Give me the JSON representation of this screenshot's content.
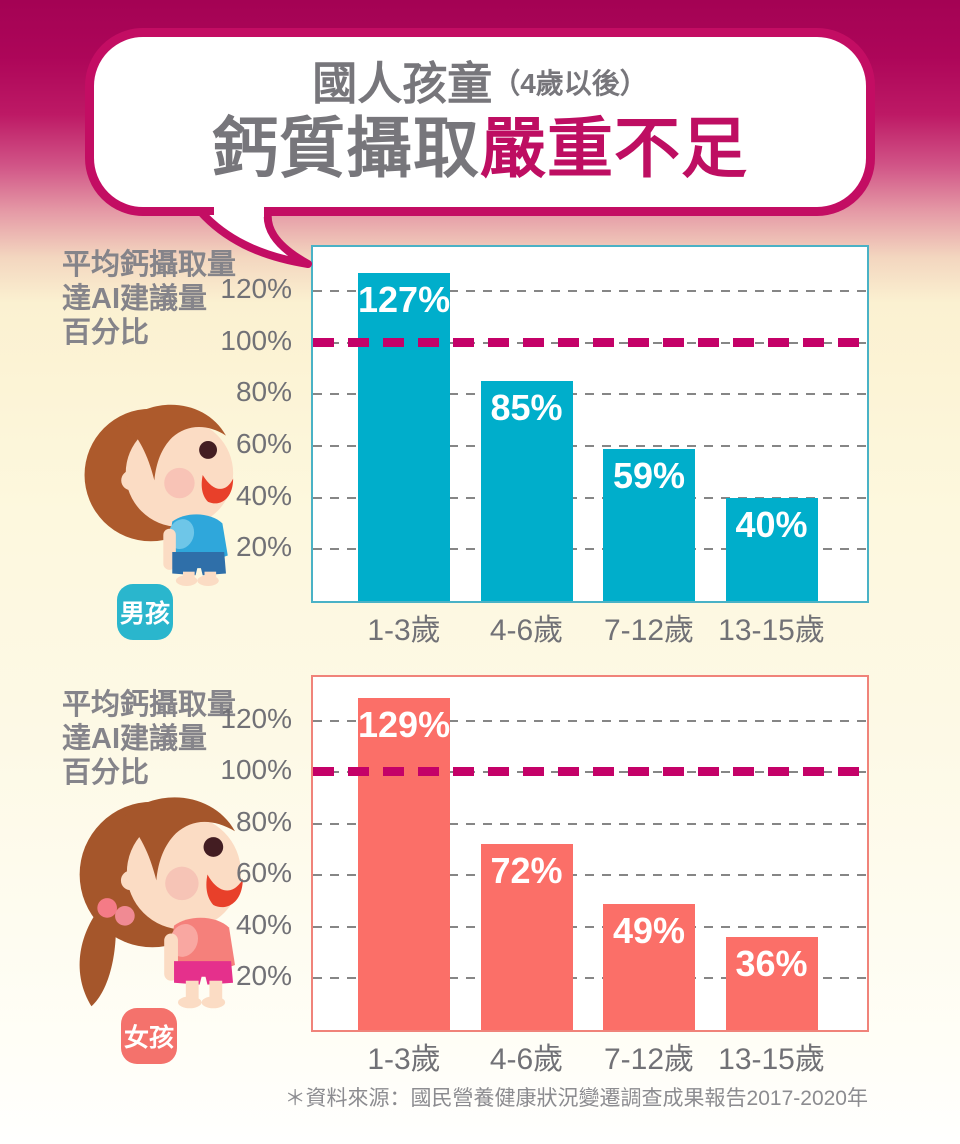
{
  "header": {
    "title_prefix": "國人孩童",
    "title_paren": "（4歲以後）",
    "title_main_gray": "鈣質攝取",
    "title_main_accent": "嚴重不足"
  },
  "colors": {
    "title_accent": "#be0e62",
    "bubble_border": "#c30d63",
    "reference_line": "#c40168",
    "grid_gray": "#868686",
    "text_gray": "#77767b",
    "boys_bar": "#00aecb",
    "boys_border": "#4ab2c6",
    "boys_badge": "#2ab6cd",
    "girls_bar": "#fb6f68",
    "girls_border": "#f0837a",
    "girls_badge": "#f4726c"
  },
  "sections": [
    {
      "axis_label_lines": [
        "平均鈣攝取量",
        "達AI建議量",
        "百分比"
      ],
      "badge_label": "男孩",
      "badge_color": "#2ab6cd",
      "figure": "boy-illustration"
    },
    {
      "axis_label_lines": [
        "平均鈣攝取量",
        "達AI建議量",
        "百分比"
      ],
      "badge_label": "女孩",
      "badge_color": "#f4726c",
      "figure": "girl-illustration"
    }
  ],
  "chart_data": [
    {
      "type": "bar",
      "series_name": "男孩",
      "ylabel": "平均鈣攝取量達AI建議量百分比",
      "categories": [
        "1-3歲",
        "4-6歲",
        "7-12歲",
        "13-15歲"
      ],
      "values": [
        127,
        85,
        59,
        40
      ],
      "value_labels": [
        "127%",
        "85%",
        "59%",
        "40%"
      ],
      "ytick_values": [
        20,
        40,
        60,
        80,
        100,
        120
      ],
      "ytick_labels": [
        "20%",
        "40%",
        "60%",
        "80%",
        "100%",
        "120%"
      ],
      "ylim": [
        0,
        137
      ],
      "reference_line_y": 100,
      "grid": "dashed horizontal",
      "legend": "none",
      "bar_color": "#00aecb",
      "border_color": "#4ab2c6"
    },
    {
      "type": "bar",
      "series_name": "女孩",
      "ylabel": "平均鈣攝取量達AI建議量百分比",
      "categories": [
        "1-3歲",
        "4-6歲",
        "7-12歲",
        "13-15歲"
      ],
      "values": [
        129,
        72,
        49,
        36
      ],
      "value_labels": [
        "129%",
        "72%",
        "49%",
        "36%"
      ],
      "ytick_values": [
        20,
        40,
        60,
        80,
        100,
        120
      ],
      "ytick_labels": [
        "20%",
        "40%",
        "60%",
        "80%",
        "100%",
        "120%"
      ],
      "ylim": [
        0,
        137
      ],
      "reference_line_y": 100,
      "grid": "dashed horizontal",
      "legend": "none",
      "bar_color": "#fb6f68",
      "border_color": "#f0837a"
    }
  ],
  "footer": {
    "source": "＊資料來源：國民營養健康狀況變遷調查成果報告2017-2020年"
  }
}
